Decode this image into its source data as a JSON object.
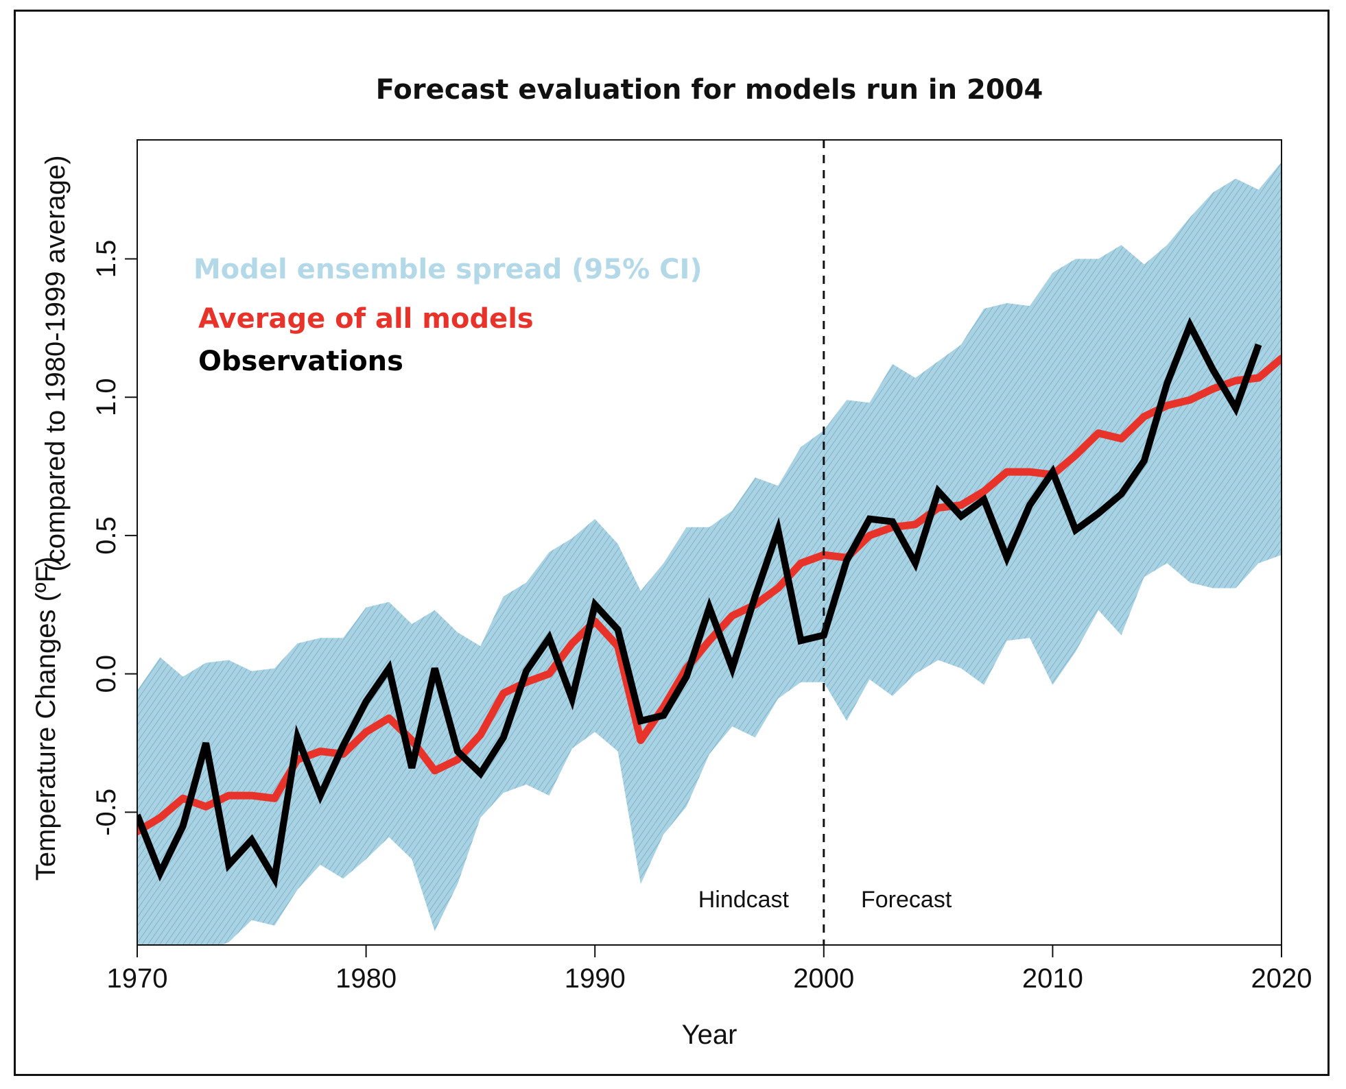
{
  "colors": {
    "band": "#a9d2e3",
    "band_hatch": "#7fb4cc",
    "model_average": "#e8332a",
    "observations": "#000000",
    "legend_band_text": "#b3d8e8"
  },
  "chart_data": {
    "type": "line",
    "title": "Forecast evaluation for models run in 2004",
    "xlabel": "Year",
    "ylabel_main": "Temperature Changes (ºF)",
    "ylabel_sub": "(compared to 1980-1999 average)",
    "xlim": [
      1970,
      2020
    ],
    "ylim": [
      -0.98,
      1.93
    ],
    "xticks": [
      "1970",
      "1980",
      "1990",
      "2000",
      "2010",
      "2020"
    ],
    "yticks": [
      "-0.5",
      "0.0",
      "0.5",
      "1.0",
      "1.5"
    ],
    "ytick_values": [
      -0.5,
      0.0,
      0.5,
      1.0,
      1.5
    ],
    "xtick_values": [
      1970,
      1980,
      1990,
      2000,
      2010,
      2020
    ],
    "legend": [
      {
        "label": "Model ensemble spread (95% CI)",
        "color": "#b3d8e8"
      },
      {
        "label": "Average of all models",
        "color": "#e8332a"
      },
      {
        "label": "Observations",
        "color": "#000000"
      }
    ],
    "divider_x": 2000,
    "region_labels": {
      "left": "Hindcast",
      "right": "Forecast"
    },
    "x": [
      1970,
      1971,
      1972,
      1973,
      1974,
      1975,
      1976,
      1977,
      1978,
      1979,
      1980,
      1981,
      1982,
      1983,
      1984,
      1985,
      1986,
      1987,
      1988,
      1989,
      1990,
      1991,
      1992,
      1993,
      1994,
      1995,
      1996,
      1997,
      1998,
      1999,
      2000,
      2001,
      2002,
      2003,
      2004,
      2005,
      2006,
      2007,
      2008,
      2009,
      2010,
      2011,
      2012,
      2013,
      2014,
      2015,
      2016,
      2017,
      2018,
      2019,
      2020
    ],
    "series": [
      {
        "name": "Average of all models",
        "values": [
          -0.57,
          -0.52,
          -0.45,
          -0.48,
          -0.44,
          -0.44,
          -0.45,
          -0.31,
          -0.28,
          -0.29,
          -0.21,
          -0.16,
          -0.24,
          -0.35,
          -0.31,
          -0.22,
          -0.07,
          -0.03,
          0.0,
          0.11,
          0.19,
          0.1,
          -0.24,
          -0.12,
          0.02,
          0.12,
          0.21,
          0.25,
          0.31,
          0.4,
          0.43,
          0.42,
          0.5,
          0.53,
          0.54,
          0.6,
          0.61,
          0.66,
          0.73,
          0.73,
          0.72,
          0.79,
          0.87,
          0.85,
          0.93,
          0.97,
          0.99,
          1.03,
          1.06,
          1.07,
          1.14
        ]
      },
      {
        "name": "Observations",
        "values": [
          -0.51,
          -0.72,
          -0.55,
          -0.25,
          -0.69,
          -0.6,
          -0.74,
          -0.23,
          -0.44,
          -0.26,
          -0.1,
          0.02,
          -0.34,
          0.02,
          -0.28,
          -0.36,
          -0.23,
          0.01,
          0.13,
          -0.09,
          0.25,
          0.16,
          -0.17,
          -0.15,
          -0.01,
          0.24,
          0.02,
          0.28,
          0.52,
          0.12,
          0.14,
          0.41,
          0.56,
          0.55,
          0.4,
          0.66,
          0.57,
          0.63,
          0.42,
          0.61,
          0.73,
          0.52,
          0.58,
          0.65,
          0.77,
          1.05,
          1.26,
          1.1,
          0.96,
          1.19,
          null
        ]
      }
    ],
    "band_upper": [
      -0.06,
      0.06,
      -0.01,
      0.04,
      0.05,
      0.01,
      0.02,
      0.11,
      0.13,
      0.13,
      0.24,
      0.26,
      0.18,
      0.23,
      0.15,
      0.1,
      0.28,
      0.33,
      0.44,
      0.49,
      0.56,
      0.47,
      0.3,
      0.4,
      0.53,
      0.53,
      0.59,
      0.71,
      0.68,
      0.82,
      0.88,
      0.99,
      0.98,
      1.12,
      1.07,
      1.13,
      1.19,
      1.32,
      1.34,
      1.33,
      1.45,
      1.5,
      1.5,
      1.55,
      1.48,
      1.55,
      1.65,
      1.74,
      1.79,
      1.75,
      1.85
    ],
    "band_lower": [
      -1.0,
      -1.0,
      -1.0,
      -1.0,
      -0.97,
      -0.89,
      -0.91,
      -0.78,
      -0.69,
      -0.74,
      -0.67,
      -0.59,
      -0.67,
      -0.93,
      -0.76,
      -0.52,
      -0.43,
      -0.4,
      -0.44,
      -0.27,
      -0.21,
      -0.28,
      -0.76,
      -0.58,
      -0.48,
      -0.29,
      -0.19,
      -0.23,
      -0.09,
      -0.03,
      -0.03,
      -0.17,
      -0.02,
      -0.08,
      0.0,
      0.05,
      0.02,
      -0.04,
      0.12,
      0.13,
      -0.04,
      0.08,
      0.23,
      0.14,
      0.35,
      0.4,
      0.33,
      0.31,
      0.31,
      0.4,
      0.43
    ]
  }
}
